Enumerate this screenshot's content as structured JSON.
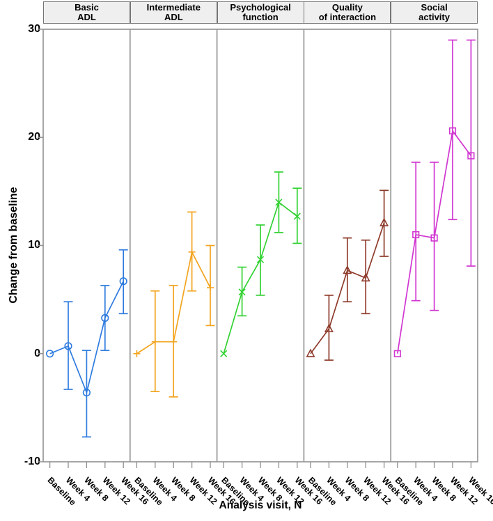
{
  "chart_data": {
    "type": "line",
    "title": "",
    "ylabel": "Change from baseline",
    "xlabel": "Analysis visit, N",
    "ylim": [
      -10,
      30
    ],
    "yticks": [
      30,
      20,
      10,
      0,
      -10
    ],
    "ytick_labels": [
      "30",
      "20",
      "10",
      "0",
      "-10"
    ],
    "categories": [
      "Baseline",
      "Week 4",
      "Week 8",
      "Week 12",
      "Week 16"
    ],
    "grid": false,
    "legend_position": "none",
    "panels": [
      {
        "title": "Basic ADL",
        "title_lines": [
          "Basic",
          "ADL"
        ],
        "color": "#2e7bdf",
        "marker": "circle",
        "values": [
          0,
          0.7,
          -3.6,
          3.3,
          6.7
        ],
        "ci_low": [
          null,
          -3.3,
          -7.7,
          0.3,
          3.7
        ],
        "ci_high": [
          null,
          4.8,
          0.3,
          6.3,
          9.6
        ]
      },
      {
        "title": "Intermediate ADL",
        "title_lines": [
          "Intermediate",
          "ADL"
        ],
        "color": "#f2a41f",
        "marker": "plus",
        "values": [
          0,
          1.1,
          1.1,
          9.4,
          6.1
        ],
        "ci_low": [
          null,
          -3.5,
          -4.0,
          5.8,
          2.6
        ],
        "ci_high": [
          null,
          5.8,
          6.3,
          13.1,
          10.0
        ]
      },
      {
        "title": "Psychological function",
        "title_lines": [
          "Psychological",
          "function"
        ],
        "color": "#33d233",
        "marker": "x",
        "values": [
          0,
          5.7,
          8.7,
          14.0,
          12.7
        ],
        "ci_low": [
          null,
          3.5,
          5.4,
          11.2,
          10.2
        ],
        "ci_high": [
          null,
          8.0,
          11.9,
          16.8,
          15.3
        ]
      },
      {
        "title": "Quality of interaction",
        "title_lines": [
          "Quality",
          "of interaction"
        ],
        "color": "#8e3b2b",
        "marker": "triangle",
        "values": [
          0,
          2.3,
          7.7,
          7.0,
          12.1
        ],
        "ci_low": [
          null,
          -0.6,
          4.8,
          3.7,
          9.0
        ],
        "ci_high": [
          null,
          5.4,
          10.7,
          10.5,
          15.1
        ]
      },
      {
        "title": "Social activity",
        "title_lines": [
          "Social",
          "activity"
        ],
        "color": "#d136d1",
        "marker": "square",
        "values": [
          0,
          11.0,
          10.7,
          20.6,
          18.3
        ],
        "ci_low": [
          null,
          4.9,
          4.0,
          12.4,
          8.1
        ],
        "ci_high": [
          null,
          17.7,
          17.7,
          29.0,
          29.0
        ]
      }
    ],
    "colors": {
      "axis": "#8f8f8f",
      "panel_border": "#969696",
      "header_bg": "#efefef",
      "header_border": "#757575",
      "text": "#000000"
    }
  }
}
